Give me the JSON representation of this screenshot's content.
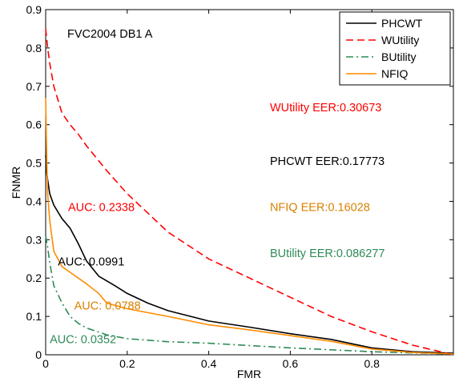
{
  "chart_data": {
    "type": "line",
    "title": "FVC2004 DB1 A",
    "xlabel": "FMR",
    "ylabel": "FNMR",
    "xlim": [
      0,
      1
    ],
    "ylim": [
      0,
      0.9
    ],
    "x_ticks": [
      "0",
      "0.2",
      "0.4",
      "0.6",
      "0.8"
    ],
    "y_ticks": [
      "0",
      "0.1",
      "0.2",
      "0.3",
      "0.4",
      "0.5",
      "0.6",
      "0.7",
      "0.8",
      "0.9"
    ],
    "grid": false,
    "legend_position": "top-right",
    "series": [
      {
        "name": "PHCWT",
        "color": "#000000",
        "dash": "solid",
        "points": [
          [
            0.0,
            0.52
          ],
          [
            0.003,
            0.47
          ],
          [
            0.01,
            0.42
          ],
          [
            0.02,
            0.39
          ],
          [
            0.04,
            0.355
          ],
          [
            0.06,
            0.33
          ],
          [
            0.08,
            0.29
          ],
          [
            0.1,
            0.245
          ],
          [
            0.13,
            0.205
          ],
          [
            0.17,
            0.18
          ],
          [
            0.2,
            0.16
          ],
          [
            0.25,
            0.135
          ],
          [
            0.3,
            0.115
          ],
          [
            0.4,
            0.088
          ],
          [
            0.5,
            0.072
          ],
          [
            0.6,
            0.055
          ],
          [
            0.7,
            0.04
          ],
          [
            0.8,
            0.018
          ],
          [
            0.9,
            0.008
          ],
          [
            1.0,
            0.004
          ]
        ]
      },
      {
        "name": "WUtility",
        "color": "#ff0000",
        "dash": "dashed",
        "points": [
          [
            0.0,
            0.85
          ],
          [
            0.005,
            0.8
          ],
          [
            0.01,
            0.76
          ],
          [
            0.02,
            0.7
          ],
          [
            0.04,
            0.63
          ],
          [
            0.06,
            0.6
          ],
          [
            0.08,
            0.575
          ],
          [
            0.1,
            0.545
          ],
          [
            0.15,
            0.48
          ],
          [
            0.2,
            0.42
          ],
          [
            0.25,
            0.37
          ],
          [
            0.3,
            0.32
          ],
          [
            0.4,
            0.25
          ],
          [
            0.5,
            0.2
          ],
          [
            0.6,
            0.15
          ],
          [
            0.7,
            0.1
          ],
          [
            0.8,
            0.06
          ],
          [
            0.9,
            0.025
          ],
          [
            1.0,
            0.0
          ]
        ]
      },
      {
        "name": "BUtility",
        "color": "#2e8b57",
        "dash": "dashdot",
        "points": [
          [
            0.0,
            0.31
          ],
          [
            0.005,
            0.28
          ],
          [
            0.01,
            0.24
          ],
          [
            0.02,
            0.18
          ],
          [
            0.04,
            0.135
          ],
          [
            0.06,
            0.1
          ],
          [
            0.08,
            0.082
          ],
          [
            0.1,
            0.07
          ],
          [
            0.15,
            0.052
          ],
          [
            0.2,
            0.042
          ],
          [
            0.3,
            0.034
          ],
          [
            0.4,
            0.03
          ],
          [
            0.5,
            0.024
          ],
          [
            0.6,
            0.018
          ],
          [
            0.7,
            0.013
          ],
          [
            0.8,
            0.008
          ],
          [
            0.9,
            0.005
          ],
          [
            1.0,
            0.002
          ]
        ]
      },
      {
        "name": "NFIQ",
        "color": "#ff8c00",
        "dash": "solid",
        "points": [
          [
            0.0,
            0.67
          ],
          [
            0.003,
            0.5
          ],
          [
            0.005,
            0.42
          ],
          [
            0.01,
            0.35
          ],
          [
            0.02,
            0.27
          ],
          [
            0.04,
            0.23
          ],
          [
            0.06,
            0.215
          ],
          [
            0.08,
            0.2
          ],
          [
            0.1,
            0.185
          ],
          [
            0.13,
            0.16
          ],
          [
            0.15,
            0.135
          ],
          [
            0.2,
            0.12
          ],
          [
            0.3,
            0.1
          ],
          [
            0.4,
            0.078
          ],
          [
            0.5,
            0.065
          ],
          [
            0.6,
            0.05
          ],
          [
            0.7,
            0.035
          ],
          [
            0.8,
            0.015
          ],
          [
            0.9,
            0.006
          ],
          [
            1.0,
            0.002
          ]
        ]
      }
    ],
    "annotations": [
      {
        "text": "WUtility EER:0.30673",
        "color": "#ff0000",
        "x": 0.55,
        "y": 0.635
      },
      {
        "text": "PHCWT EER:0.17773",
        "color": "#000000",
        "x": 0.55,
        "y": 0.495
      },
      {
        "text": "NFIQ EER:0.16028",
        "color": "#d98000",
        "x": 0.55,
        "y": 0.375
      },
      {
        "text": "BUtility EER:0.086277",
        "color": "#2e8b57",
        "x": 0.55,
        "y": 0.255
      },
      {
        "text": "AUC: 0.2338",
        "color": "#ff0000",
        "x": 0.055,
        "y": 0.375
      },
      {
        "text": "AUC: 0.0991",
        "color": "#000000",
        "x": 0.03,
        "y": 0.233
      },
      {
        "text": "AUC: 0.0788",
        "color": "#d98000",
        "x": 0.07,
        "y": 0.118
      },
      {
        "text": "AUC: 0.0352",
        "color": "#2e8b57",
        "x": 0.01,
        "y": 0.03
      }
    ]
  }
}
